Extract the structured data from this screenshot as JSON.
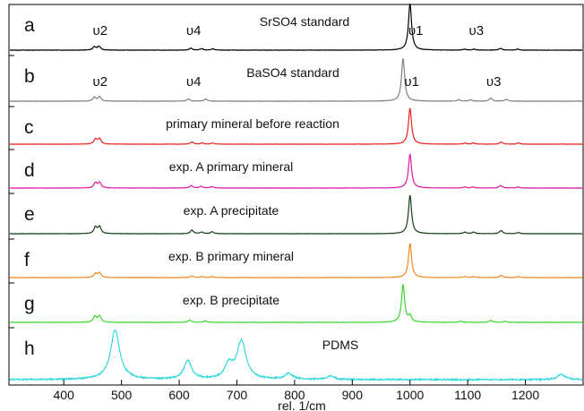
{
  "chart_data": {
    "type": "line",
    "xlabel": "rel. 1/cm",
    "xlim": [
      305,
      1300
    ],
    "x_ticks": [
      "400",
      "500",
      "600",
      "700",
      "800",
      "900",
      "1000",
      "1100",
      "1200"
    ],
    "x_tick_values": [
      400,
      500,
      600,
      700,
      800,
      900,
      1000,
      1100,
      1200
    ],
    "series": [
      {
        "letter": "a",
        "name": "SrSO4 standard",
        "color": "#000000",
        "peak_labels": [
          {
            "text": "υ2",
            "x": 463
          },
          {
            "text": "υ4",
            "x": 625
          },
          {
            "text": "υ1",
            "x": 1010
          },
          {
            "text": "υ3",
            "x": 1115
          }
        ],
        "peaks": [
          [
            453,
            0.07
          ],
          [
            461,
            0.08
          ],
          [
            620,
            0.04
          ],
          [
            639,
            0.03
          ],
          [
            658,
            0.025
          ],
          [
            1000,
            1.0
          ],
          [
            1094,
            0.02
          ],
          [
            1111,
            0.02
          ],
          [
            1157,
            0.035
          ],
          [
            1187,
            0.02
          ]
        ]
      },
      {
        "letter": "b",
        "name": "BaSO4 standard",
        "color": "#808080",
        "peak_labels": [
          {
            "text": "υ2",
            "x": 463
          },
          {
            "text": "υ4",
            "x": 625
          },
          {
            "text": "υ1",
            "x": 1003
          },
          {
            "text": "υ3",
            "x": 1145
          }
        ],
        "peaks": [
          [
            453,
            0.09
          ],
          [
            462,
            0.1
          ],
          [
            616,
            0.05
          ],
          [
            646,
            0.05
          ],
          [
            988,
            1.0
          ],
          [
            1084,
            0.03
          ],
          [
            1105,
            0.03
          ],
          [
            1140,
            0.07
          ],
          [
            1167,
            0.04
          ]
        ]
      },
      {
        "letter": "c",
        "name": "primary mineral before reaction",
        "color": "#e82020",
        "peaks": [
          [
            455,
            0.14
          ],
          [
            462,
            0.15
          ],
          [
            622,
            0.06
          ],
          [
            640,
            0.03
          ],
          [
            658,
            0.03
          ],
          [
            1000,
            1.0
          ],
          [
            1095,
            0.03
          ],
          [
            1110,
            0.03
          ],
          [
            1158,
            0.06
          ],
          [
            1188,
            0.03
          ]
        ]
      },
      {
        "letter": "d",
        "name": "exp. A primary mineral",
        "color": "#e0179e",
        "peaks": [
          [
            455,
            0.15
          ],
          [
            462,
            0.16
          ],
          [
            621,
            0.07
          ],
          [
            638,
            0.05
          ],
          [
            657,
            0.04
          ],
          [
            1000,
            1.0
          ],
          [
            1095,
            0.03
          ],
          [
            1109,
            0.03
          ],
          [
            1157,
            0.07
          ],
          [
            1187,
            0.03
          ]
        ]
      },
      {
        "letter": "e",
        "name": "exp. A precipitate",
        "color": "#173f17",
        "peaks": [
          [
            455,
            0.17
          ],
          [
            462,
            0.18
          ],
          [
            622,
            0.09
          ],
          [
            639,
            0.04
          ],
          [
            657,
            0.05
          ],
          [
            1000,
            1.0
          ],
          [
            1095,
            0.04
          ],
          [
            1110,
            0.04
          ],
          [
            1158,
            0.08
          ],
          [
            1188,
            0.03
          ]
        ]
      },
      {
        "letter": "f",
        "name": "exp. B primary mineral",
        "color": "#ee8a20",
        "peaks": [
          [
            455,
            0.12
          ],
          [
            462,
            0.14
          ],
          [
            622,
            0.05
          ],
          [
            640,
            0.03
          ],
          [
            658,
            0.03
          ],
          [
            1000,
            1.0
          ],
          [
            1095,
            0.03
          ],
          [
            1110,
            0.03
          ],
          [
            1158,
            0.06
          ],
          [
            1188,
            0.03
          ]
        ]
      },
      {
        "letter": "g",
        "name": "exp. B precipitate",
        "color": "#3ad62e",
        "peaks": [
          [
            454,
            0.16
          ],
          [
            462,
            0.17
          ],
          [
            618,
            0.06
          ],
          [
            645,
            0.04
          ],
          [
            988,
            1.0
          ],
          [
            1000,
            0.16
          ],
          [
            1088,
            0.03
          ],
          [
            1140,
            0.05
          ],
          [
            1165,
            0.03
          ]
        ]
      },
      {
        "letter": "h",
        "name": "PDMS",
        "color": "#30d8dc",
        "peaks": [
          [
            489,
            1.0
          ],
          [
            615,
            0.38
          ],
          [
            686,
            0.28
          ],
          [
            708,
            0.78
          ],
          [
            790,
            0.12
          ],
          [
            862,
            0.07
          ],
          [
            1262,
            0.1
          ]
        ]
      }
    ]
  }
}
